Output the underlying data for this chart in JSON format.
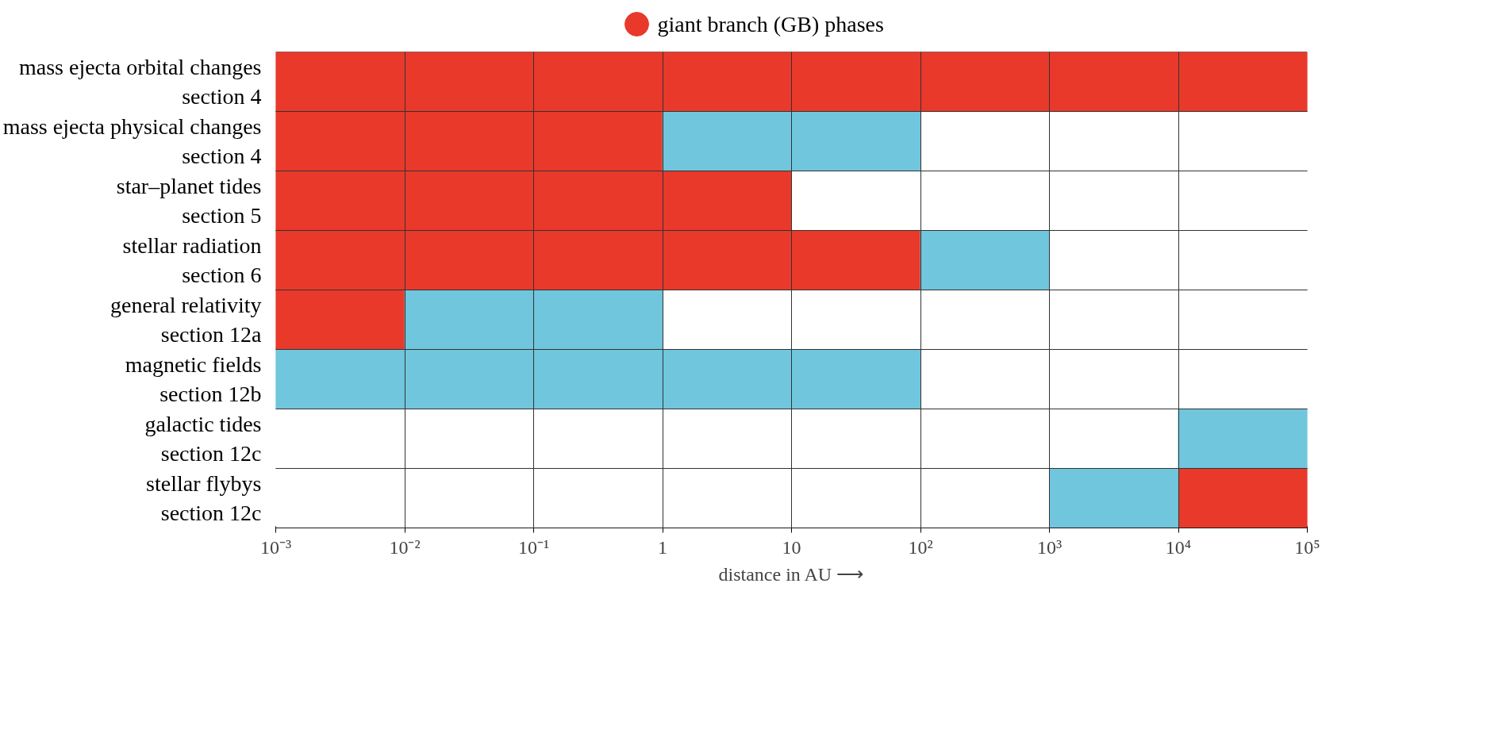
{
  "chart_data": {
    "type": "bar",
    "orientation": "horizontal",
    "categories": [
      "mass ejecta orbital changes\nsection 4",
      "mass ejecta physical changes\nsection 4",
      "star–planet tides\nsection 5",
      "stellar radiation\nsection 6",
      "general relativity\nsection 12a",
      "magnetic fields\nsection 12b",
      "galactic tides\nsection 12c",
      "stellar flybys\nsection 12c"
    ],
    "series": [
      {
        "name": "giant branch (GB) phases",
        "color": "#e8392a",
        "base": [
          0.001,
          0.001,
          0.001,
          0.001,
          0.001,
          null,
          null,
          10000
        ],
        "values": [
          99999.999,
          0.999,
          9.999,
          99.999,
          0.009,
          null,
          null,
          90000
        ]
      },
      {
        "color": "#70c6dc",
        "base": [
          null,
          1,
          null,
          100,
          0.01,
          0.001,
          10000,
          1000
        ],
        "values": [
          null,
          99,
          null,
          900,
          0.99,
          99.999,
          90000,
          9000
        ]
      }
    ],
    "log": "x",
    "xlim": [
      0.001,
      100000
    ],
    "xticks": [
      {
        "value": 0.001,
        "label": "10⁻³"
      },
      {
        "value": 0.01,
        "label": "10⁻²"
      },
      {
        "value": 0.1,
        "label": "10⁻¹"
      },
      1,
      10,
      {
        "value": 100,
        "label": "10²"
      },
      {
        "value": 1000,
        "label": "10³"
      },
      {
        "value": 10000,
        "label": "10⁴"
      },
      {
        "value": 100000,
        "label": "10⁵"
      }
    ],
    "xlabel": "distance in AU ⟶",
    "grid": true,
    "legend": "top"
  }
}
